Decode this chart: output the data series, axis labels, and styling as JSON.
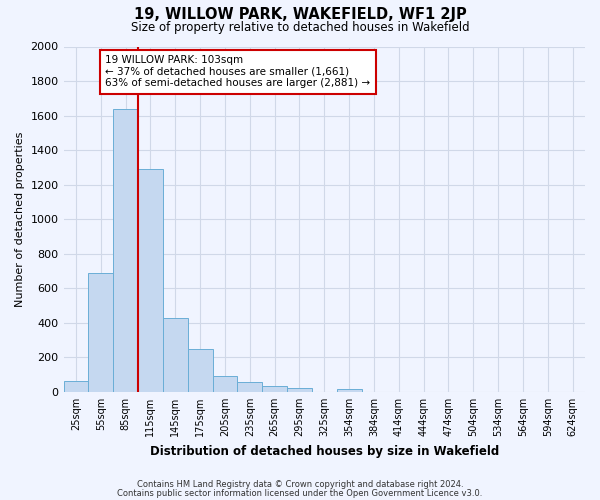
{
  "title": "19, WILLOW PARK, WAKEFIELD, WF1 2JP",
  "subtitle": "Size of property relative to detached houses in Wakefield",
  "xlabel": "Distribution of detached houses by size in Wakefield",
  "ylabel": "Number of detached properties",
  "categories": [
    "25sqm",
    "55sqm",
    "85sqm",
    "115sqm",
    "145sqm",
    "175sqm",
    "205sqm",
    "235sqm",
    "265sqm",
    "295sqm",
    "325sqm",
    "354sqm",
    "384sqm",
    "414sqm",
    "444sqm",
    "474sqm",
    "504sqm",
    "534sqm",
    "564sqm",
    "594sqm",
    "624sqm"
  ],
  "bar_values": [
    65,
    690,
    1640,
    1290,
    430,
    250,
    90,
    55,
    35,
    25,
    0,
    15,
    0,
    0,
    0,
    0,
    0,
    0,
    0,
    0,
    0
  ],
  "bar_color": "#c5d8f0",
  "bar_edge_color": "#6aaed6",
  "red_line_color": "#cc0000",
  "annotation_title": "19 WILLOW PARK: 103sqm",
  "annotation_line1": "← 37% of detached houses are smaller (1,661)",
  "annotation_line2": "63% of semi-detached houses are larger (2,881) →",
  "annotation_box_color": "#ffffff",
  "annotation_box_edge": "#cc0000",
  "ylim": [
    0,
    2000
  ],
  "yticks": [
    0,
    200,
    400,
    600,
    800,
    1000,
    1200,
    1400,
    1600,
    1800,
    2000
  ],
  "footnote1": "Contains HM Land Registry data © Crown copyright and database right 2024.",
  "footnote2": "Contains public sector information licensed under the Open Government Licence v3.0.",
  "grid_color": "#d0d8e8",
  "background_color": "#f0f4ff"
}
